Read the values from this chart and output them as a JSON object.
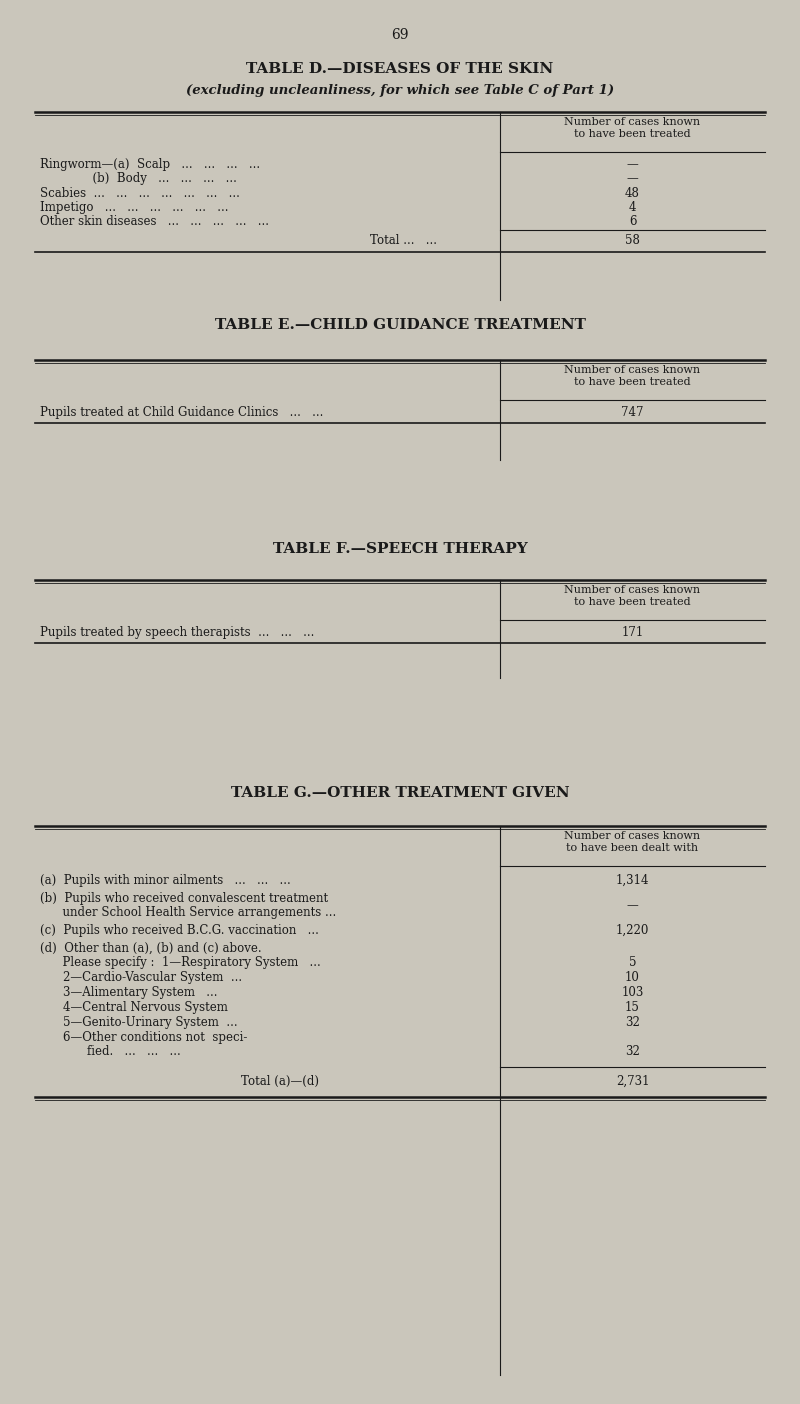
{
  "page_number": "69",
  "bg_color": "#cac6bb",
  "text_color": "#1a1a1a",
  "table_d": {
    "title": "TABLE D.—DISEASES OF THE SKIN",
    "subtitle": "(excluding uncleanliness, for which see Table C of Part 1)",
    "header": "Number of cases known\nto have been treated",
    "rows": [
      [
        "Ringworm—(a)  Scalp   ...   ...   ...   ...",
        "—"
      ],
      [
        "              (b)  Body   ...   ...   ...   ...",
        "—"
      ],
      [
        "Scabies  ...   ...   ...   ...   ...   ...   ...",
        "48"
      ],
      [
        "Impetigo   ...   ...   ...   ...   ...   ...",
        "4"
      ],
      [
        "Other skin diseases   ...   ...   ...   ...   ...",
        "6"
      ]
    ],
    "total_label": "Total ...   ...",
    "total_value": "58"
  },
  "table_e": {
    "title": "TABLE E.—CHILD GUIDANCE TREATMENT",
    "header": "Number of cases known\nto have been treated",
    "rows": [
      [
        "Pupils treated at Child Guidance Clinics   ...   ...",
        "747"
      ]
    ]
  },
  "table_f": {
    "title": "TABLE F.—SPEECH THERAPY",
    "header": "Number of cases known\nto have been treated",
    "rows": [
      [
        "Pupils treated by speech therapists  ...   ...   ...",
        "171"
      ]
    ]
  },
  "table_g": {
    "title": "TABLE G.—OTHER TREATMENT GIVEN",
    "header": "Number of cases known\nto have been dealt with",
    "row_a_label": "(a)  Pupils with minor ailments   ...   ...   ...",
    "row_a_val": "1,314",
    "row_b_line1": "(b)  Pupils who received convalescent treatment",
    "row_b_line2": "      under School Health Service arrangements ...",
    "row_b_val": "—",
    "row_c_label": "(c)  Pupils who received B.C.G. vaccination   ...",
    "row_c_val": "1,220",
    "row_d1": "(d)  Other than (a), (b) and (c) above.",
    "row_d2": "      Please specify :  1—Respiratory System   ...",
    "row_d2_val": "5",
    "row_d3": "                     2—Cardio-Vascular System  ...",
    "row_d3_val": "10",
    "row_d4": "                     3—Alimentary System   ...",
    "row_d4_val": "103",
    "row_d5": "                     4—Central Nervous System",
    "row_d5_val": "15",
    "row_d6": "                     5—Genito-Urinary System  ...",
    "row_d6_val": "32",
    "row_d7a": "                     6—Other conditions not  speci-",
    "row_d7b": "                           fied.   ...   ...   ...",
    "row_d7_val": "32",
    "total_label": "Total (a)—(d)",
    "total_value": "2,731"
  }
}
